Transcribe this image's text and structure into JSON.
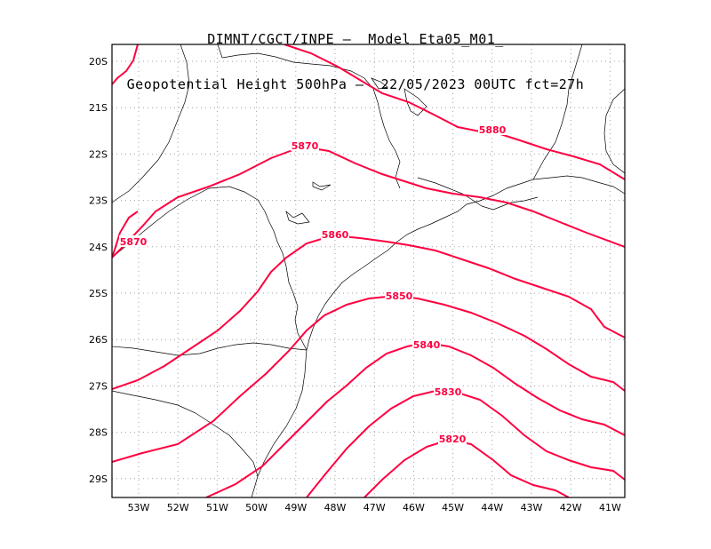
{
  "header": {
    "title_line1": "DIMNT/CGCT/INPE –  Model Eta05_M01_",
    "title_line2": "Geopotential Height 500hPa –  22/05/2023 00UTC fct=27h"
  },
  "map": {
    "lon_ticks": [
      "53W",
      "52W",
      "51W",
      "50W",
      "49W",
      "48W",
      "47W",
      "46W",
      "45W",
      "44W",
      "43W",
      "42W",
      "41W"
    ],
    "lat_ticks": [
      "20S",
      "21S",
      "22S",
      "23S",
      "24S",
      "25S",
      "26S",
      "27S",
      "28S",
      "29S"
    ],
    "contour_color": "#ff0040",
    "contour_labels": [
      "5880",
      "5870",
      "5870",
      "5860",
      "5850",
      "5840",
      "5830",
      "5820"
    ]
  }
}
